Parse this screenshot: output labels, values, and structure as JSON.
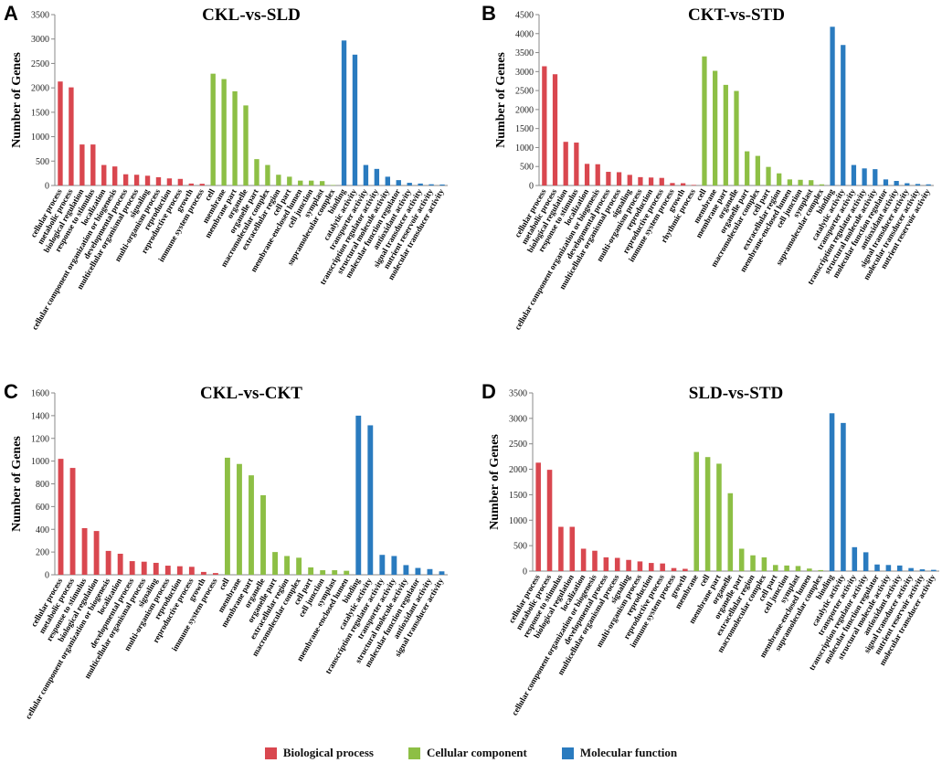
{
  "colors": {
    "bp": "#d9474f",
    "cc": "#8dbf45",
    "mf": "#2a7bbf"
  },
  "legend": [
    {
      "label": "Biological process",
      "color": "#d9474f"
    },
    {
      "label": "Cellular component",
      "color": "#8dbf45"
    },
    {
      "label": "Molecular function",
      "color": "#2a7bbf"
    }
  ],
  "ylabel": "Number of Genes",
  "chart_data": [
    {
      "panel": "A",
      "type": "bar",
      "title": "CKL-vs-SLD",
      "ylabel": "Number of Genes",
      "ylim": [
        0,
        3500
      ],
      "ticks": [
        0,
        500,
        1000,
        1500,
        2000,
        2500,
        3000,
        3500
      ],
      "series": [
        {
          "name": "Biological process",
          "categories": [
            "cellular process",
            "metabolic process",
            "biological regulation",
            "response to stimulus",
            "localization",
            "cellular component organization or biogenesis",
            "developmental process",
            "multicellular organismal process",
            "signaling",
            "multi-organism process",
            "reproduction",
            "reproductive process",
            "growth",
            "immune system process"
          ],
          "values": [
            2130,
            2010,
            840,
            840,
            420,
            390,
            230,
            220,
            200,
            170,
            145,
            135,
            40,
            35
          ]
        },
        {
          "name": "Cellular component",
          "categories": [
            "cell",
            "membrane",
            "membrane part",
            "organelle",
            "organelle part",
            "macromolecular complex",
            "extracellular region",
            "cell part",
            "membrane-enclosed lumen",
            "cell junction",
            "symplast",
            "supramolecular complex"
          ],
          "values": [
            2290,
            2180,
            1930,
            1640,
            540,
            420,
            220,
            180,
            100,
            100,
            90,
            10
          ]
        },
        {
          "name": "Molecular function",
          "categories": [
            "binding",
            "catalytic activity",
            "transporter activity",
            "transcription regulator activity",
            "structural molecule activity",
            "molecular function regulator",
            "antioxidant activity",
            "signal transducer activity",
            "nutrient reservoir activity",
            "molecular transducer activity"
          ],
          "values": [
            2970,
            2680,
            420,
            340,
            180,
            110,
            55,
            40,
            25,
            20
          ]
        }
      ]
    },
    {
      "panel": "B",
      "type": "bar",
      "title": "CKT-vs-STD",
      "ylabel": "Number of Genes",
      "ylim": [
        0,
        4500
      ],
      "ticks": [
        0,
        500,
        1000,
        1500,
        2000,
        2500,
        3000,
        3500,
        4000,
        4500
      ],
      "series": [
        {
          "name": "Biological process",
          "categories": [
            "cellular process",
            "metabolic process",
            "biological regulation",
            "response to stimulus",
            "localization",
            "cellular component organization or biogenesis",
            "developmental process",
            "multicellular organismal process",
            "signaling",
            "multi-organism process",
            "reproduction",
            "reproductive process",
            "immune system process",
            "growth",
            "rhythmic process"
          ],
          "values": [
            3140,
            2930,
            1150,
            1130,
            570,
            560,
            360,
            350,
            280,
            220,
            210,
            200,
            65,
            60,
            15
          ]
        },
        {
          "name": "Cellular component",
          "categories": [
            "cell",
            "membrane",
            "membrane part",
            "organelle",
            "organelle part",
            "macromolecular complex",
            "cell part",
            "extracellular region",
            "membrane-enclosed lumen",
            "cell junction",
            "symplast",
            "supramolecular complex"
          ],
          "values": [
            3400,
            3020,
            2650,
            2490,
            900,
            780,
            490,
            320,
            160,
            150,
            140,
            30
          ]
        },
        {
          "name": "Molecular function",
          "categories": [
            "binding",
            "catalytic activity",
            "transporter activity",
            "transcription regulator activity",
            "structural molecule activity",
            "molecular function regulator",
            "antioxidant activity",
            "signal transducer activity",
            "molecular transducer activity",
            "nutrient reservoir activity"
          ],
          "values": [
            4180,
            3700,
            540,
            450,
            430,
            160,
            120,
            60,
            40,
            30
          ]
        }
      ]
    },
    {
      "panel": "C",
      "type": "bar",
      "title": "CKL-vs-CKT",
      "ylabel": "Number of Genes",
      "ylim": [
        0,
        1600
      ],
      "ticks": [
        0,
        200,
        400,
        600,
        800,
        1000,
        1200,
        1400,
        1600
      ],
      "series": [
        {
          "name": "Biological process",
          "categories": [
            "cellular process",
            "metabolic process",
            "response to stimulus",
            "biological regulation",
            "cellular component organization or biogenesis",
            "localization",
            "developmental process",
            "multicellular organismal process",
            "signaling",
            "multi-organism process",
            "reproduction",
            "reproductive process",
            "growth",
            "immune system process"
          ],
          "values": [
            1020,
            940,
            410,
            385,
            210,
            185,
            120,
            115,
            105,
            80,
            75,
            70,
            25,
            15
          ]
        },
        {
          "name": "Cellular component",
          "categories": [
            "cell",
            "membrane",
            "membrane part",
            "organelle",
            "organelle part",
            "extracellular region",
            "macromolecular complex",
            "cell part",
            "cell junction",
            "symplast",
            "membrane-enclosed lumen"
          ],
          "values": [
            1030,
            975,
            875,
            700,
            200,
            165,
            150,
            65,
            40,
            40,
            35
          ]
        },
        {
          "name": "Molecular function",
          "categories": [
            "binding",
            "catalytic activity",
            "transcription regulator activity",
            "transporter activity",
            "structural molecule activity",
            "molecular function regulator",
            "antioxidant activity",
            "signal transducer activity"
          ],
          "values": [
            1400,
            1315,
            175,
            165,
            85,
            60,
            50,
            30
          ]
        }
      ]
    },
    {
      "panel": "D",
      "type": "bar",
      "title": "SLD-vs-STD",
      "ylabel": "Number of Genes",
      "ylim": [
        0,
        3500
      ],
      "ticks": [
        0,
        500,
        1000,
        1500,
        2000,
        2500,
        3000,
        3500
      ],
      "series": [
        {
          "name": "Biological process",
          "categories": [
            "cellular process",
            "metabolic process",
            "response to stimulus",
            "biological regulation",
            "localization",
            "cellular component organization or biogenesis",
            "developmental process",
            "multicellular organismal process",
            "signaling",
            "multi-organism process",
            "reproduction",
            "reproductive process",
            "immune system process",
            "growth"
          ],
          "values": [
            2130,
            1990,
            870,
            870,
            440,
            400,
            270,
            260,
            220,
            190,
            160,
            150,
            60,
            45
          ]
        },
        {
          "name": "Cellular component",
          "categories": [
            "membrane",
            "cell",
            "membrane part",
            "organelle",
            "organelle part",
            "extracellular region",
            "macromolecular complex",
            "cell part",
            "cell junction",
            "symplast",
            "membrane-enclosed lumen",
            "supramolecular complex"
          ],
          "values": [
            2340,
            2240,
            2110,
            1530,
            440,
            310,
            270,
            120,
            110,
            100,
            50,
            20
          ]
        },
        {
          "name": "Molecular function",
          "categories": [
            "binding",
            "catalytic activity",
            "transporter activity",
            "transcription regulator activity",
            "molecular function regulator",
            "structural molecule activity",
            "antioxidant activity",
            "signal transducer activity",
            "nutrient reservoir activity",
            "molecular transducer activity"
          ],
          "values": [
            3100,
            2910,
            470,
            370,
            130,
            120,
            110,
            60,
            35,
            25
          ]
        }
      ]
    }
  ]
}
